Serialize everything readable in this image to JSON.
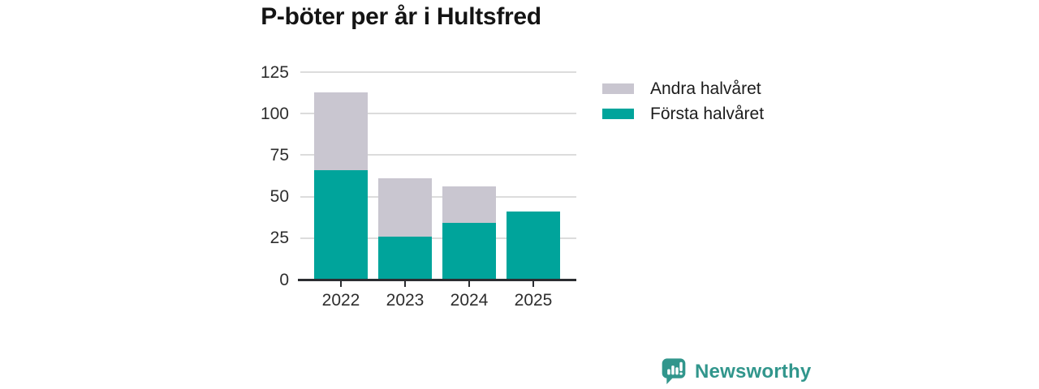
{
  "chart_data": {
    "type": "bar",
    "stacked": true,
    "title": "P-böter per år i Hultsfred",
    "categories": [
      "2022",
      "2023",
      "2024",
      "2025"
    ],
    "series": [
      {
        "name": "Första halvåret",
        "color": "#00a49b",
        "values": [
          66,
          26,
          34,
          41
        ]
      },
      {
        "name": "Andra halvåret",
        "color": "#c9c6d0",
        "values": [
          47,
          35,
          22,
          0
        ]
      }
    ],
    "totals": [
      113,
      61,
      56,
      41
    ],
    "xlabel": "",
    "ylabel": "",
    "ylim": [
      0,
      125
    ],
    "yticks": [
      0,
      25,
      50,
      75,
      100,
      125
    ],
    "grid": true,
    "legend_position": "right",
    "legend_order": [
      "Andra halvåret",
      "Första halvåret"
    ]
  },
  "brand": {
    "name": "Newsworthy",
    "color": "#31968c"
  },
  "colors": {
    "background": "#ffffff",
    "title_text": "#141414",
    "axis": "#2b2d31",
    "grid": "#dcdcdc",
    "tick_text": "#2e2e2e"
  }
}
